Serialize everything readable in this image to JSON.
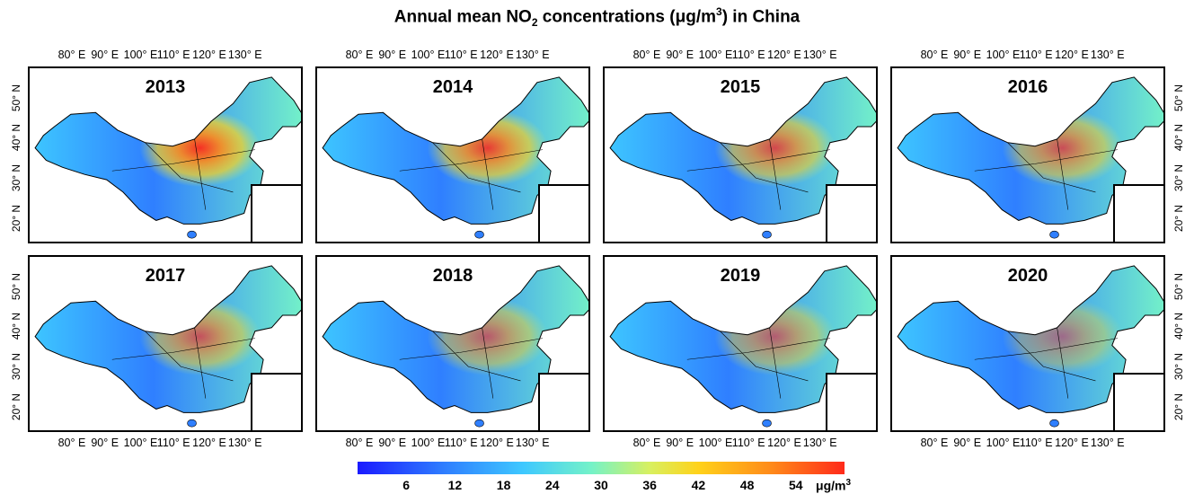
{
  "title": {
    "prefix": "Annual mean NO",
    "sub": "2",
    "mid": " concentrations (μg/m",
    "sup": "3",
    "suffix": ") in China"
  },
  "lon_ticks": [
    "80° E",
    "90° E",
    "100° E",
    "110° E",
    "120° E",
    "130° E"
  ],
  "lat_ticks": [
    "50° N",
    "40° N",
    "30° N",
    "20° N"
  ],
  "panels": [
    {
      "year": "2013",
      "intensity": 1.0
    },
    {
      "year": "2014",
      "intensity": 0.92
    },
    {
      "year": "2015",
      "intensity": 0.8
    },
    {
      "year": "2016",
      "intensity": 0.75
    },
    {
      "year": "2017",
      "intensity": 0.72
    },
    {
      "year": "2018",
      "intensity": 0.65
    },
    {
      "year": "2019",
      "intensity": 0.62
    },
    {
      "year": "2020",
      "intensity": 0.5
    }
  ],
  "colorbar": {
    "ticks": [
      "6",
      "12",
      "18",
      "24",
      "30",
      "36",
      "42",
      "48",
      "54"
    ],
    "unit_base": "μg/m",
    "unit_sup": "3",
    "colors": [
      "#1a1aff",
      "#2f7fff",
      "#3ec8ff",
      "#74f2c8",
      "#d8f060",
      "#ffd21a",
      "#ff8a1a",
      "#ff2a1a"
    ]
  }
}
